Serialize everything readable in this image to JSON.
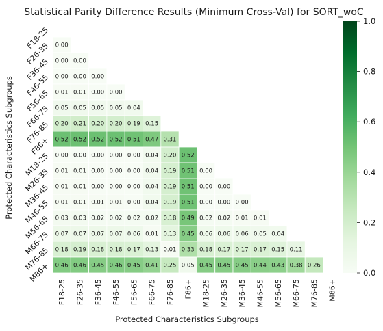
{
  "chart_data": {
    "type": "heatmap",
    "title": "Statistical Parity Difference Results (Minimum Cross-Val) for SORT_woC",
    "xlabel": "Protected Characteristics Subgroups",
    "ylabel": "Protected Characteristics Subgroups",
    "categories": [
      "F18-25",
      "F26-35",
      "F36-45",
      "F46-55",
      "F56-65",
      "F66-75",
      "F76-85",
      "F86+",
      "M18-25",
      "M26-35",
      "M36-45",
      "M46-55",
      "M56-65",
      "M66-75",
      "M76-85",
      "M86+"
    ],
    "mask": "upper-triangle-including-diagonal",
    "values": [
      [],
      [
        "0.00"
      ],
      [
        "0.00",
        "0.00"
      ],
      [
        "0.00",
        "0.00",
        "0.00"
      ],
      [
        "0.01",
        "0.01",
        "0.00",
        "0.00"
      ],
      [
        "0.05",
        "0.05",
        "0.05",
        "0.05",
        "0.04"
      ],
      [
        "0.20",
        "0.21",
        "0.20",
        "0.20",
        "0.19",
        "0.15"
      ],
      [
        "0.52",
        "0.52",
        "0.52",
        "0.52",
        "0.51",
        "0.47",
        "0.31"
      ],
      [
        "0.00",
        "0.00",
        "0.00",
        "0.00",
        "0.00",
        "0.04",
        "0.20",
        "0.52"
      ],
      [
        "0.01",
        "0.01",
        "0.00",
        "0.00",
        "0.00",
        "0.04",
        "0.19",
        "0.51",
        "0.00"
      ],
      [
        "0.01",
        "0.01",
        "0.00",
        "0.00",
        "0.00",
        "0.04",
        "0.19",
        "0.51",
        "0.00",
        "0.00"
      ],
      [
        "0.01",
        "0.01",
        "0.01",
        "0.01",
        "0.00",
        "0.04",
        "0.19",
        "0.51",
        "0.00",
        "0.00",
        "0.00"
      ],
      [
        "0.03",
        "0.03",
        "0.02",
        "0.02",
        "0.02",
        "0.02",
        "0.18",
        "0.49",
        "0.02",
        "0.02",
        "0.01",
        "0.01"
      ],
      [
        "0.07",
        "0.07",
        "0.07",
        "0.07",
        "0.06",
        "0.01",
        "0.13",
        "0.45",
        "0.06",
        "0.06",
        "0.06",
        "0.05",
        "0.04"
      ],
      [
        "0.18",
        "0.19",
        "0.18",
        "0.18",
        "0.17",
        "0.13",
        "0.01",
        "0.33",
        "0.18",
        "0.17",
        "0.17",
        "0.17",
        "0.15",
        "0.11"
      ],
      [
        "0.46",
        "0.46",
        "0.45",
        "0.46",
        "0.45",
        "0.41",
        "0.25",
        "0.05",
        "0.45",
        "0.45",
        "0.45",
        "0.44",
        "0.43",
        "0.38",
        "0.26"
      ]
    ],
    "colorbar": {
      "min": 0.0,
      "max": 1.0,
      "ticks": [
        "0.0",
        "0.2",
        "0.4",
        "0.6",
        "0.8",
        "1.0"
      ],
      "colormap": "Greens"
    },
    "colors": {
      "low": "#f7fcf5",
      "high": "#00441b",
      "text_dark": "#1a1a1a",
      "text_light": "#ffffff",
      "cell_border": "#ffffff"
    }
  }
}
